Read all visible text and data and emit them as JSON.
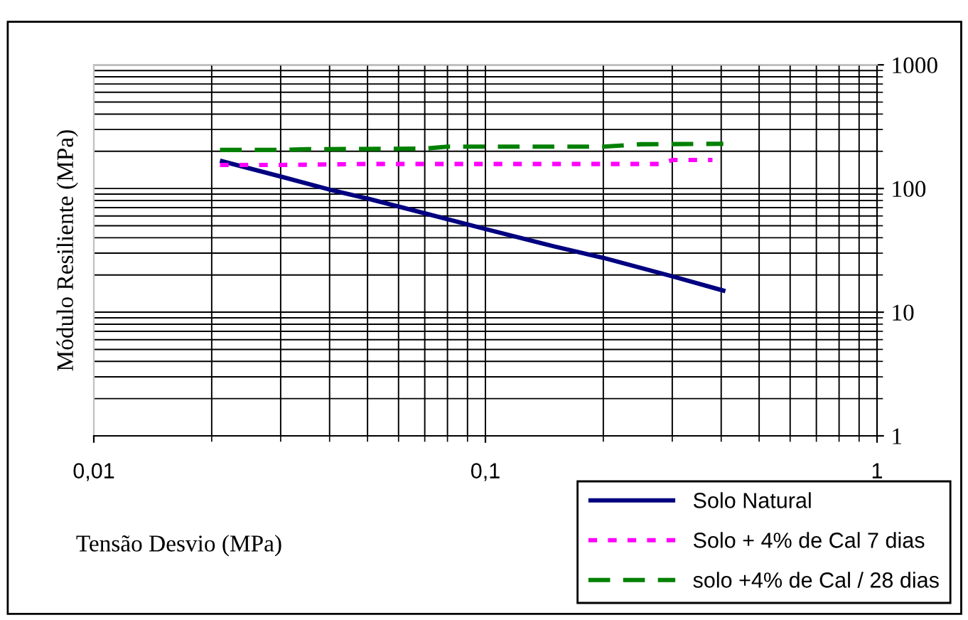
{
  "chart_data": {
    "type": "line",
    "xlabel": "Tensão Desvio (MPa)",
    "ylabel": "Módulo Resiliente (MPa)",
    "log": "xy",
    "xlim": [
      0.01,
      1
    ],
    "ylim": [
      1,
      1000
    ],
    "xticks": [
      {
        "value": 0.01,
        "label": "0,01"
      },
      {
        "value": 0.1,
        "label": "0,1"
      },
      {
        "value": 1,
        "label": "1"
      }
    ],
    "yticks": [
      1,
      10,
      100,
      1000
    ],
    "grid": true,
    "legend": "bottom right",
    "series": [
      {
        "name": "Solo Natural",
        "color": "#000080",
        "line_style": "solid",
        "x": [
          0.021,
          0.03,
          0.04,
          0.05,
          0.07,
          0.1,
          0.15,
          0.2,
          0.3,
          0.41
        ],
        "values": [
          168,
          125,
          98,
          83,
          63,
          47,
          34,
          27.5,
          19.5,
          14.8
        ]
      },
      {
        "name": "Solo + 4% de Cal 7 dias",
        "color": "#ff00ff",
        "line_style": "dotted",
        "x": [
          0.021,
          0.03,
          0.05,
          0.1,
          0.2,
          0.28,
          0.3,
          0.38
        ],
        "values": [
          155,
          155,
          158,
          158,
          158,
          158,
          170,
          170
        ]
      },
      {
        "name": "solo +4% de Cal / 28 dias",
        "color": "#008000",
        "line_style": "dashed",
        "x": [
          0.021,
          0.03,
          0.035,
          0.07,
          0.08,
          0.2,
          0.25,
          0.405
        ],
        "values": [
          205,
          205,
          208,
          210,
          218,
          218,
          228,
          230
        ]
      }
    ]
  }
}
